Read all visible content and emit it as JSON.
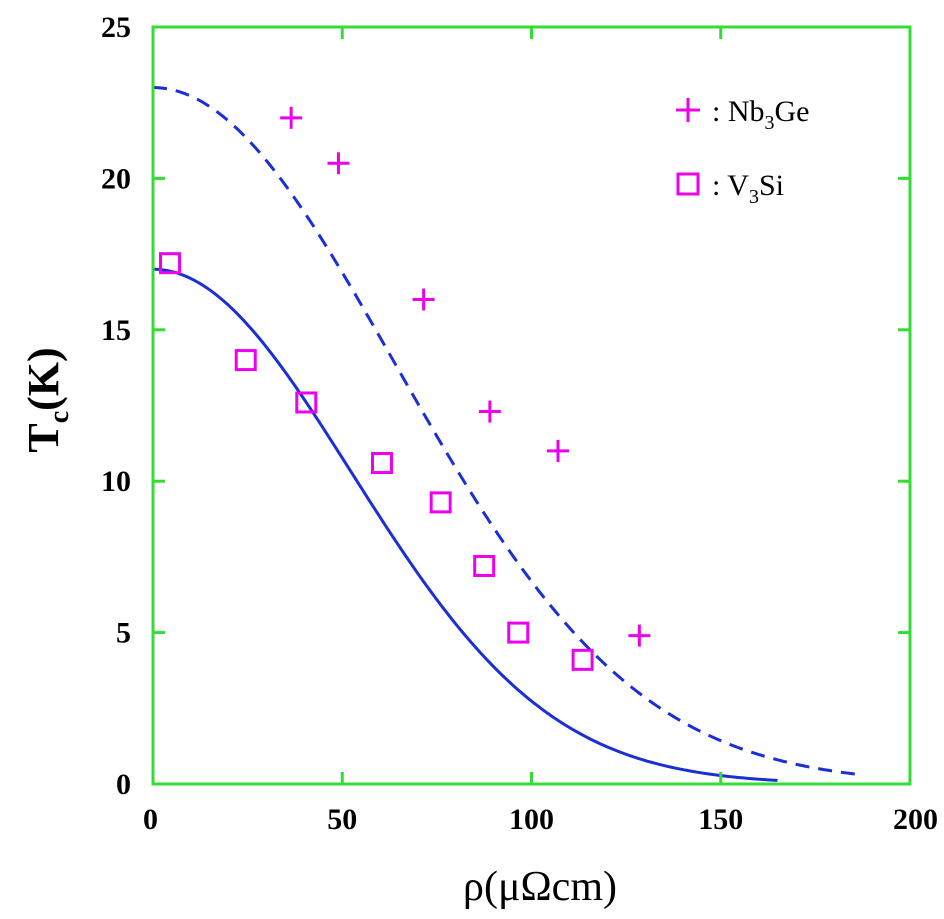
{
  "chart_data": {
    "type": "scatter",
    "xlabel": {
      "main": "ρ(μΩcm)"
    },
    "ylabel": {
      "main": "T",
      "sub": "c",
      "rest": "(K)"
    },
    "xlim": [
      0,
      200
    ],
    "ylim": [
      0,
      25
    ],
    "x_ticks": [
      0,
      50,
      100,
      150,
      200
    ],
    "y_ticks": [
      0,
      5,
      10,
      15,
      20,
      25
    ],
    "frame_color": "#33dd33",
    "legend_position": "top-right",
    "series": [
      {
        "name": ": Nb₃Ge",
        "label_main": ": Nb",
        "label_sub": "3",
        "label_rest": "Ge",
        "marker": "plus",
        "color": "#ee00ee",
        "points": [
          [
            36.5,
            22
          ],
          [
            49,
            20.5
          ],
          [
            71.5,
            16
          ],
          [
            89,
            12.3
          ],
          [
            107,
            11
          ],
          [
            128.5,
            4.9
          ]
        ]
      },
      {
        "name": ": V₃Si",
        "label_main": ": V",
        "label_sub": "3",
        "label_rest": "Si",
        "marker": "square",
        "color": "#ee00ee",
        "points": [
          [
            4.5,
            17.2
          ],
          [
            24.5,
            14
          ],
          [
            40.5,
            12.6
          ],
          [
            60.5,
            10.6
          ],
          [
            76,
            9.3
          ],
          [
            87.5,
            7.2
          ],
          [
            96.5,
            5
          ],
          [
            113.5,
            4.1
          ]
        ]
      }
    ],
    "fit_curves": [
      {
        "style": "dashed",
        "color": "#1a2fd6",
        "amplitude": 23,
        "width": 90,
        "x_range": [
          0,
          186
        ]
      },
      {
        "style": "solid",
        "color": "#1a2fd6",
        "amplitude": 17,
        "width": 74,
        "x_range": [
          0,
          165
        ]
      }
    ]
  }
}
